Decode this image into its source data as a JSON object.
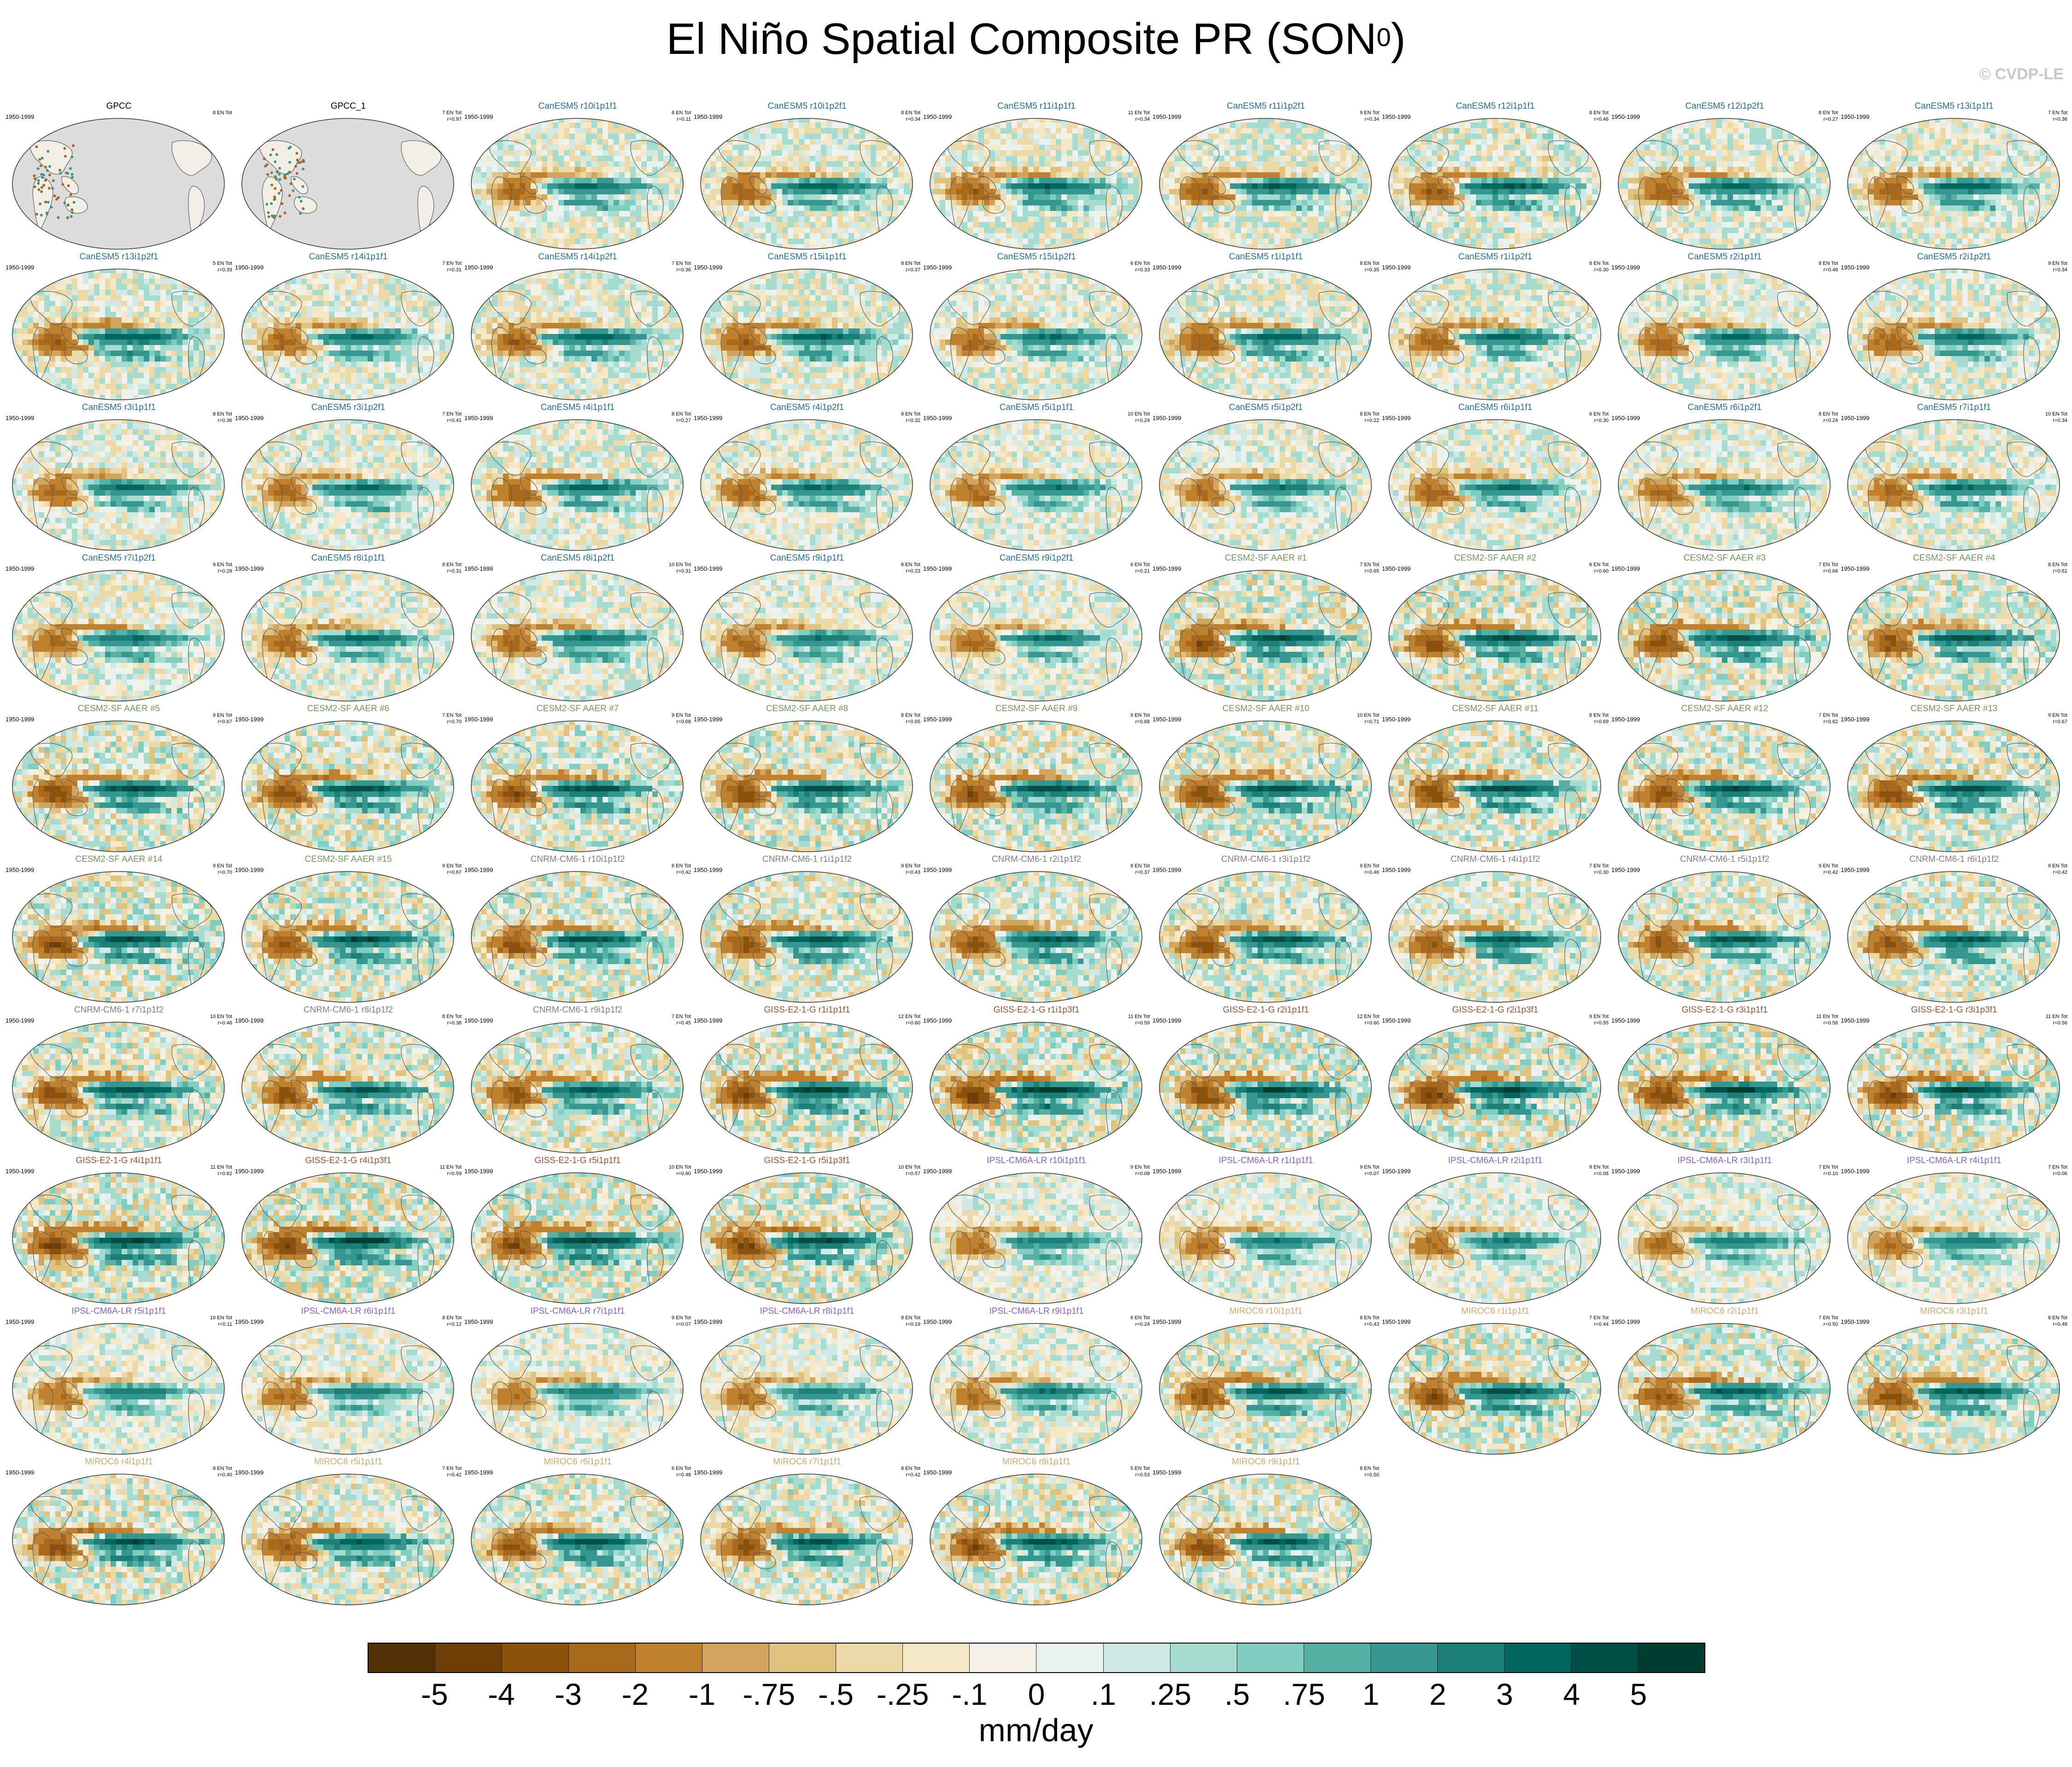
{
  "title": {
    "main": "El Niño Spatial Composite PR (SON",
    "sup": "0",
    "close": ")"
  },
  "credit": "© CVDP-LE",
  "colors": {
    "colorbar": [
      "#543005",
      "#6d3f07",
      "#8c510a",
      "#a8691d",
      "#bf812d",
      "#d1a55d",
      "#dfc27d",
      "#ecd9a8",
      "#f4e8c6",
      "#f5f1e6",
      "#e8f2ef",
      "#cfeae4",
      "#a6dbd0",
      "#80cdc1",
      "#56b0a3",
      "#35978f",
      "#1c7f76",
      "#01665e",
      "#015047",
      "#003c30"
    ],
    "series": {
      "obs": "#000000",
      "canesm": "#1f6f9a",
      "cesm": "#6e9a55",
      "cnrm": "#808080",
      "giss": "#a0522d",
      "ipsl": "#8a5ed0",
      "miroc": "#d4a86a"
    }
  },
  "colorbar_ticks": [
    "-5",
    "-4",
    "-3",
    "-2",
    "-1",
    "-.75",
    "-.5",
    "-.25",
    "-.1",
    "0",
    ".1",
    ".25",
    ".5",
    ".75",
    "1",
    "2",
    "3",
    "4",
    "5"
  ],
  "units": "mm/day",
  "chart_data": {
    "type": "heatmap",
    "title": "El Niño Spatial Composite PR (SON0)",
    "colorbar": {
      "levels": [
        -5,
        -4,
        -3,
        -2,
        -1,
        -0.75,
        -0.5,
        -0.25,
        -0.1,
        0,
        0.1,
        0.25,
        0.5,
        0.75,
        1,
        2,
        3,
        4,
        5
      ],
      "units": "mm/day"
    },
    "panels": [
      {
        "name": "GPCC",
        "years": "1950-1999",
        "tot": "8 EN Tot",
        "r": "",
        "group": "obs",
        "amp": 0.2,
        "land_only": true
      },
      {
        "name": "GPCC_1",
        "years": "",
        "tot": "7 EN Tot",
        "r": "r=0.97",
        "group": "obs",
        "amp": 0.2,
        "land_only": true
      },
      {
        "name": "CanESM5 r10i1p1f1",
        "years": "1950-1999",
        "tot": "8 EN Tot",
        "r": "r=0.11",
        "group": "canesm",
        "amp": 0.6
      },
      {
        "name": "CanESM5 r10i1p2f1",
        "years": "1950-1999",
        "tot": "8 EN Tot",
        "r": "r=0.34",
        "group": "canesm",
        "amp": 0.65
      },
      {
        "name": "CanESM5 r11i1p1f1",
        "years": "1950-1999",
        "tot": "11 EN Tot",
        "r": "r=0.34",
        "group": "canesm",
        "amp": 0.7
      },
      {
        "name": "CanESM5 r11i1p2f1",
        "years": "1950-1999",
        "tot": "9 EN Tot",
        "r": "r=0.34",
        "group": "canesm",
        "amp": 0.7
      },
      {
        "name": "CanESM5 r12i1p1f1",
        "years": "1950-1999",
        "tot": "8 EN Tot",
        "r": "r=0.46",
        "group": "canesm",
        "amp": 0.75
      },
      {
        "name": "CanESM5 r12i1p2f1",
        "years": "1950-1999",
        "tot": "8 EN Tot",
        "r": "r=0.27",
        "group": "canesm",
        "amp": 0.65
      },
      {
        "name": "CanESM5 r13i1p1f1",
        "years": "1950-1999",
        "tot": "7 EN Tot",
        "r": "r=0.36",
        "group": "canesm",
        "amp": 0.65
      },
      {
        "name": "CanESM5 r13i1p2f1",
        "years": "1950-1999",
        "tot": "5 EN Tot",
        "r": "r=0.33",
        "group": "canesm",
        "amp": 0.7
      },
      {
        "name": "CanESM5 r14i1p1f1",
        "years": "1950-1999",
        "tot": "7 EN Tot",
        "r": "r=0.31",
        "group": "canesm",
        "amp": 0.6
      },
      {
        "name": "CanESM5 r14i1p2f1",
        "years": "1950-1999",
        "tot": "7 EN Tot",
        "r": "r=0.36",
        "group": "canesm",
        "amp": 0.65
      },
      {
        "name": "CanESM5 r15i1p1f1",
        "years": "1950-1999",
        "tot": "8 EN Tot",
        "r": "r=0.37",
        "group": "canesm",
        "amp": 0.7
      },
      {
        "name": "CanESM5 r15i1p2f1",
        "years": "1950-1999",
        "tot": "6 EN Tot",
        "r": "r=0.33",
        "group": "canesm",
        "amp": 0.6
      },
      {
        "name": "CanESM5 r1i1p1f1",
        "years": "1950-1999",
        "tot": "8 EN Tot",
        "r": "r=0.35",
        "group": "canesm",
        "amp": 0.7
      },
      {
        "name": "CanESM5 r1i1p2f1",
        "years": "1950-1999",
        "tot": "8 EN Tot",
        "r": "r=0.30",
        "group": "canesm",
        "amp": 0.65
      },
      {
        "name": "CanESM5 r2i1p1f1",
        "years": "1950-1999",
        "tot": "8 EN Tot",
        "r": "r=0.48",
        "group": "canesm",
        "amp": 0.6
      },
      {
        "name": "CanESM5 r2i1p2f1",
        "years": "1950-1999",
        "tot": "9 EN Tot",
        "r": "r=0.34",
        "group": "canesm",
        "amp": 0.65
      },
      {
        "name": "CanESM5 r3i1p1f1",
        "years": "1950-1999",
        "tot": "8 EN Tot",
        "r": "r=0.36",
        "group": "canesm",
        "amp": 0.6
      },
      {
        "name": "CanESM5 r3i1p2f1",
        "years": "1950-1999",
        "tot": "7 EN Tot",
        "r": "r=0.41",
        "group": "canesm",
        "amp": 0.6
      },
      {
        "name": "CanESM5 r4i1p1f1",
        "years": "1950-1999",
        "tot": "8 EN Tot",
        "r": "r=0.27",
        "group": "canesm",
        "amp": 0.65
      },
      {
        "name": "CanESM5 r4i1p2f1",
        "years": "1950-1999",
        "tot": "8 EN Tot",
        "r": "r=0.32",
        "group": "canesm",
        "amp": 0.6
      },
      {
        "name": "CanESM5 r5i1p1f1",
        "years": "1950-1999",
        "tot": "10 EN Tot",
        "r": "r=0.24",
        "group": "canesm",
        "amp": 0.55
      },
      {
        "name": "CanESM5 r5i1p2f1",
        "years": "1950-1999",
        "tot": "8 EN Tot",
        "r": "r=0.22",
        "group": "canesm",
        "amp": 0.55
      },
      {
        "name": "CanESM5 r6i1p1f1",
        "years": "1950-1999",
        "tot": "6 EN Tot",
        "r": "r=0.30",
        "group": "canesm",
        "amp": 0.6
      },
      {
        "name": "CanESM5 r6i1p2f1",
        "years": "1950-1999",
        "tot": "8 EN Tot",
        "r": "r=0.24",
        "group": "canesm",
        "amp": 0.55
      },
      {
        "name": "CanESM5 r7i1p1f1",
        "years": "1950-1999",
        "tot": "10 EN Tot",
        "r": "r=0.34",
        "group": "canesm",
        "amp": 0.6
      },
      {
        "name": "CanESM5 r7i1p2f1",
        "years": "1950-1999",
        "tot": "9 EN Tot",
        "r": "r=0.28",
        "group": "canesm",
        "amp": 0.6
      },
      {
        "name": "CanESM5 r8i1p1f1",
        "years": "1950-1999",
        "tot": "8 EN Tot",
        "r": "r=0.31",
        "group": "canesm",
        "amp": 0.6
      },
      {
        "name": "CanESM5 r8i1p2f1",
        "years": "1950-1999",
        "tot": "10 EN Tot",
        "r": "r=0.31",
        "group": "canesm",
        "amp": 0.6
      },
      {
        "name": "CanESM5 r9i1p1f1",
        "years": "1950-1999",
        "tot": "8 EN Tot",
        "r": "r=0.23",
        "group": "canesm",
        "amp": 0.55
      },
      {
        "name": "CanESM5 r9i1p2f1",
        "years": "1950-1999",
        "tot": "6 EN Tot",
        "r": "r=0.21",
        "group": "canesm",
        "amp": 0.55
      },
      {
        "name": "CESM2-SF AAER #1",
        "years": "1950-1999",
        "tot": "7 EN Tot",
        "r": "r=0.65",
        "group": "cesm",
        "amp": 0.85
      },
      {
        "name": "CESM2-SF AAER #2",
        "years": "1950-1999",
        "tot": "6 EN Tot",
        "r": "r=0.60",
        "group": "cesm",
        "amp": 0.9
      },
      {
        "name": "CESM2-SF AAER #3",
        "years": "1950-1999",
        "tot": "7 EN Tot",
        "r": "r=0.66",
        "group": "cesm",
        "amp": 0.85
      },
      {
        "name": "CESM2-SF AAER #4",
        "years": "1950-1999",
        "tot": "8 EN Tot",
        "r": "r=0.61",
        "group": "cesm",
        "amp": 0.8
      },
      {
        "name": "CESM2-SF AAER #5",
        "years": "1950-1999",
        "tot": "9 EN Tot",
        "r": "r=0.67",
        "group": "cesm",
        "amp": 0.85
      },
      {
        "name": "CESM2-SF AAER #6",
        "years": "1950-1999",
        "tot": "7 EN Tot",
        "r": "r=0.70",
        "group": "cesm",
        "amp": 0.85
      },
      {
        "name": "CESM2-SF AAER #7",
        "years": "1950-1999",
        "tot": "9 EN Tot",
        "r": "r=0.68",
        "group": "cesm",
        "amp": 0.85
      },
      {
        "name": "CESM2-SF AAER #8",
        "years": "1950-1999",
        "tot": "8 EN Tot",
        "r": "r=0.65",
        "group": "cesm",
        "amp": 0.85
      },
      {
        "name": "CESM2-SF AAER #9",
        "years": "1950-1999",
        "tot": "9 EN Tot",
        "r": "r=0.68",
        "group": "cesm",
        "amp": 0.85
      },
      {
        "name": "CESM2-SF AAER #10",
        "years": "1950-1999",
        "tot": "10 EN Tot",
        "r": "r=0.71",
        "group": "cesm",
        "amp": 0.85
      },
      {
        "name": "CESM2-SF AAER #11",
        "years": "1950-1999",
        "tot": "8 EN Tot",
        "r": "r=0.69",
        "group": "cesm",
        "amp": 0.85
      },
      {
        "name": "CESM2-SF AAER #12",
        "years": "1950-1999",
        "tot": "7 EN Tot",
        "r": "r=0.62",
        "group": "cesm",
        "amp": 0.85
      },
      {
        "name": "CESM2-SF AAER #13",
        "years": "1950-1999",
        "tot": "9 EN Tot",
        "r": "r=0.67",
        "group": "cesm",
        "amp": 0.85
      },
      {
        "name": "CESM2-SF AAER #14",
        "years": "1950-1999",
        "tot": "9 EN Tot",
        "r": "r=0.70",
        "group": "cesm",
        "amp": 0.9
      },
      {
        "name": "CESM2-SF AAER #15",
        "years": "1950-1999",
        "tot": "9 EN Tot",
        "r": "r=0.67",
        "group": "cesm",
        "amp": 0.85
      },
      {
        "name": "CNRM-CM6-1 r10i1p1f2",
        "years": "1950-1999",
        "tot": "6 EN Tot",
        "r": "r=0.42",
        "group": "cnrm",
        "amp": 0.8
      },
      {
        "name": "CNRM-CM6-1 r1i1p1f2",
        "years": "1950-1999",
        "tot": "9 EN Tot",
        "r": "r=0.43",
        "group": "cnrm",
        "amp": 0.8
      },
      {
        "name": "CNRM-CM6-1 r2i1p1f2",
        "years": "1950-1999",
        "tot": "8 EN Tot",
        "r": "r=0.37",
        "group": "cnrm",
        "amp": 0.8
      },
      {
        "name": "CNRM-CM6-1 r3i1p1f2",
        "years": "1950-1999",
        "tot": "9 EN Tot",
        "r": "r=0.46",
        "group": "cnrm",
        "amp": 0.8
      },
      {
        "name": "CNRM-CM6-1 r4i1p1f2",
        "years": "1950-1999",
        "tot": "7 EN Tot",
        "r": "r=0.30",
        "group": "cnrm",
        "amp": 0.75
      },
      {
        "name": "CNRM-CM6-1 r5i1p1f2",
        "years": "1950-1999",
        "tot": "9 EN Tot",
        "r": "r=0.42",
        "group": "cnrm",
        "amp": 0.8
      },
      {
        "name": "CNRM-CM6-1 r6i1p1f2",
        "years": "1950-1999",
        "tot": "9 EN Tot",
        "r": "r=0.42",
        "group": "cnrm",
        "amp": 0.8
      },
      {
        "name": "CNRM-CM6-1 r7i1p1f2",
        "years": "1950-1999",
        "tot": "10 EN Tot",
        "r": "r=0.48",
        "group": "cnrm",
        "amp": 0.85
      },
      {
        "name": "CNRM-CM6-1 r8i1p1f2",
        "years": "1950-1999",
        "tot": "8 EN Tot",
        "r": "r=0.38",
        "group": "cnrm",
        "amp": 0.8
      },
      {
        "name": "CNRM-CM6-1 r9i1p1f2",
        "years": "1950-1999",
        "tot": "7 EN Tot",
        "r": "r=0.45",
        "group": "cnrm",
        "amp": 0.8
      },
      {
        "name": "GISS-E2-1-G r1i1p1f1",
        "years": "1950-1999",
        "tot": "12 EN Tot",
        "r": "r=0.60",
        "group": "giss",
        "amp": 0.95
      },
      {
        "name": "GISS-E2-1-G r1i1p3f1",
        "years": "1950-1999",
        "tot": "11 EN Tot",
        "r": "r=0.59",
        "group": "giss",
        "amp": 1.0
      },
      {
        "name": "GISS-E2-1-G r2i1p1f1",
        "years": "1950-1999",
        "tot": "12 EN Tot",
        "r": "r=0.60",
        "group": "giss",
        "amp": 0.95
      },
      {
        "name": "GISS-E2-1-G r2i1p3f1",
        "years": "1950-1999",
        "tot": "9 EN Tot",
        "r": "r=0.55",
        "group": "giss",
        "amp": 0.95
      },
      {
        "name": "GISS-E2-1-G r3i1p1f1",
        "years": "1950-1999",
        "tot": "11 EN Tot",
        "r": "r=0.58",
        "group": "giss",
        "amp": 0.95
      },
      {
        "name": "GISS-E2-1-G r3i1p3f1",
        "years": "1950-1999",
        "tot": "11 EN Tot",
        "r": "r=0.56",
        "group": "giss",
        "amp": 0.95
      },
      {
        "name": "GISS-E2-1-G r4i1p1f1",
        "years": "1950-1999",
        "tot": "11 EN Tot",
        "r": "r=0.62",
        "group": "giss",
        "amp": 0.95
      },
      {
        "name": "GISS-E2-1-G r4i1p3f1",
        "years": "1950-1999",
        "tot": "11 EN Tot",
        "r": "r=0.59",
        "group": "giss",
        "amp": 1.0
      },
      {
        "name": "GISS-E2-1-G r5i1p1f1",
        "years": "1950-1999",
        "tot": "10 EN Tot",
        "r": "r=0.60",
        "group": "giss",
        "amp": 0.95
      },
      {
        "name": "GISS-E2-1-G r5i1p3f1",
        "years": "1950-1999",
        "tot": "10 EN Tot",
        "r": "r=0.57",
        "group": "giss",
        "amp": 0.95
      },
      {
        "name": "IPSL-CM6A-LR r10i1p1f1",
        "years": "1950-1999",
        "tot": "9 EN Tot",
        "r": "r=0.08",
        "group": "ipsl",
        "amp": 0.5
      },
      {
        "name": "IPSL-CM6A-LR r1i1p1f1",
        "years": "1950-1999",
        "tot": "9 EN Tot",
        "r": "r=0.07",
        "group": "ipsl",
        "amp": 0.5
      },
      {
        "name": "IPSL-CM6A-LR r2i1p1f1",
        "years": "1950-1999",
        "tot": "9 EN Tot",
        "r": "r=0.08",
        "group": "ipsl",
        "amp": 0.5
      },
      {
        "name": "IPSL-CM6A-LR r3i1p1f1",
        "years": "1950-1999",
        "tot": "7 EN Tot",
        "r": "r=0.10",
        "group": "ipsl",
        "amp": 0.5
      },
      {
        "name": "IPSL-CM6A-LR r4i1p1f1",
        "years": "1950-1999",
        "tot": "7 EN Tot",
        "r": "r=0.06",
        "group": "ipsl",
        "amp": 0.5
      },
      {
        "name": "IPSL-CM6A-LR r5i1p1f1",
        "years": "1950-1999",
        "tot": "10 EN Tot",
        "r": "r=0.11",
        "group": "ipsl",
        "amp": 0.5
      },
      {
        "name": "IPSL-CM6A-LR r6i1p1f1",
        "years": "1950-1999",
        "tot": "8 EN Tot",
        "r": "r=0.12",
        "group": "ipsl",
        "amp": 0.5
      },
      {
        "name": "IPSL-CM6A-LR r7i1p1f1",
        "years": "1950-1999",
        "tot": "9 EN Tot",
        "r": "r=0.07",
        "group": "ipsl",
        "amp": 0.5
      },
      {
        "name": "IPSL-CM6A-LR r8i1p1f1",
        "years": "1950-1999",
        "tot": "8 EN Tot",
        "r": "r=0.19",
        "group": "ipsl",
        "amp": 0.5
      },
      {
        "name": "IPSL-CM6A-LR r9i1p1f1",
        "years": "1950-1999",
        "tot": "6 EN Tot",
        "r": "r=0.24",
        "group": "ipsl",
        "amp": 0.55
      },
      {
        "name": "MIROC6 r10i1p1f1",
        "years": "1950-1999",
        "tot": "8 EN Tot",
        "r": "r=0.43",
        "group": "miroc",
        "amp": 0.8
      },
      {
        "name": "MIROC6 r1i1p1f1",
        "years": "1950-1999",
        "tot": "7 EN Tot",
        "r": "r=0.44",
        "group": "miroc",
        "amp": 0.85
      },
      {
        "name": "MIROC6 r2i1p1f1",
        "years": "1950-1999",
        "tot": "7 EN Tot",
        "r": "r=0.50",
        "group": "miroc",
        "amp": 0.8
      },
      {
        "name": "MIROC6 r3i1p1f1",
        "years": "1950-1999",
        "tot": "8 EN Tot",
        "r": "r=0.48",
        "group": "miroc",
        "amp": 0.8
      },
      {
        "name": "MIROC6 r4i1p1f1",
        "years": "1950-1999",
        "tot": "8 EN Tot",
        "r": "r=0.40",
        "group": "miroc",
        "amp": 0.85
      },
      {
        "name": "MIROC6 r5i1p1f1",
        "years": "1950-1999",
        "tot": "7 EN Tot",
        "r": "r=0.42",
        "group": "miroc",
        "amp": 0.8
      },
      {
        "name": "MIROC6 r6i1p1f1",
        "years": "1950-1999",
        "tot": "6 EN Tot",
        "r": "r=0.48",
        "group": "miroc",
        "amp": 0.8
      },
      {
        "name": "MIROC6 r7i1p1f1",
        "years": "1950-1999",
        "tot": "8 EN Tot",
        "r": "r=0.42",
        "group": "miroc",
        "amp": 0.8
      },
      {
        "name": "MIROC6 r8i1p1f1",
        "years": "1950-1999",
        "tot": "5 EN Tot",
        "r": "r=0.53",
        "group": "miroc",
        "amp": 0.85
      },
      {
        "name": "MIROC6 r9i1p1f1",
        "years": "1950-1999",
        "tot": "8 EN Tot",
        "r": "r=0.50",
        "group": "miroc",
        "amp": 0.8
      }
    ]
  }
}
